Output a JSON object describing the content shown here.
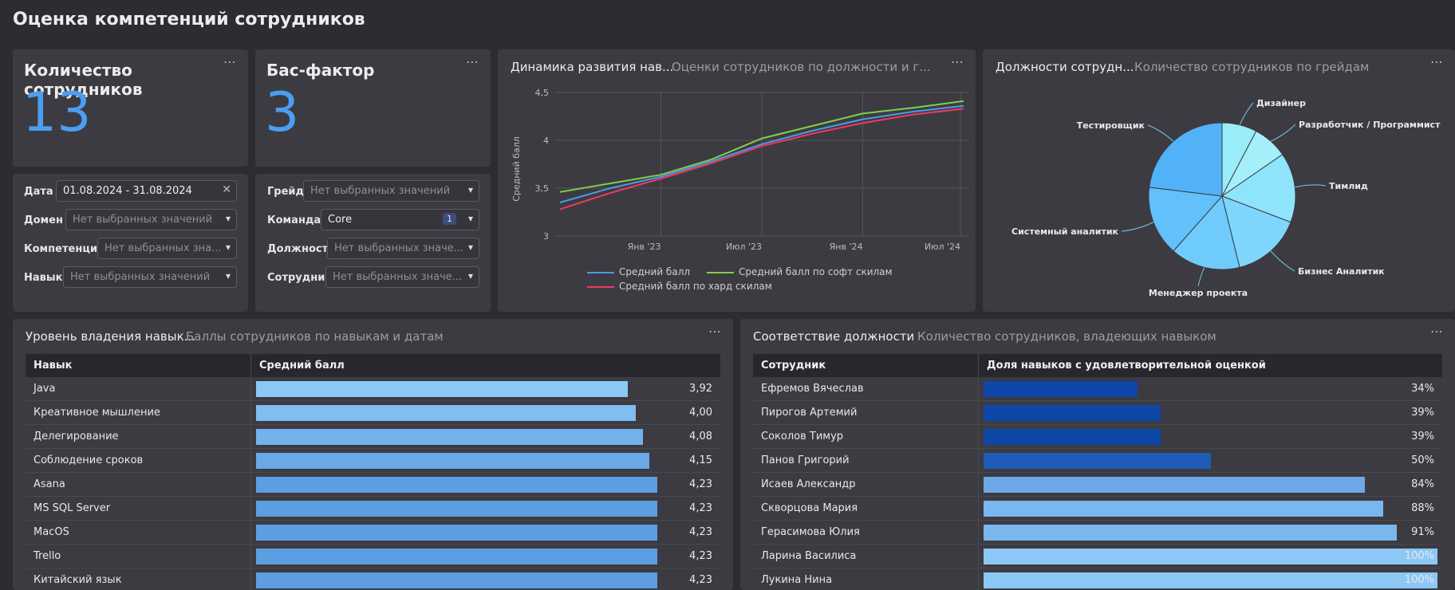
{
  "page": {
    "title": "Оценка компетенций сотрудников"
  },
  "menu_icon": "⋯",
  "kpi1": {
    "title": "Количество сотрудников",
    "value": "13"
  },
  "kpi2": {
    "title": "Бас-фактор",
    "value": "3"
  },
  "filters_left": {
    "date_label": "Дата",
    "date_value": "01.08.2024 - 31.08.2024",
    "domain_label": "Домен",
    "domain_placeholder": "Нет выбранных значений",
    "competence_label": "Компетенция",
    "competence_placeholder": "Нет выбранных зна...",
    "skill_label": "Навык",
    "skill_placeholder": "Нет выбранных значений"
  },
  "filters_right": {
    "grade_label": "Грейд",
    "grade_placeholder": "Нет выбранных значений",
    "team_label": "Команда*",
    "team_value": "Core",
    "team_count": "1",
    "position_label": "Должность",
    "position_placeholder": "Нет выбранных значе...",
    "employee_label": "Сотрудник",
    "employee_placeholder": "Нет выбранных значе..."
  },
  "line_card": {
    "tab1": "Динамика развития нав...",
    "tab2": "Оценки сотрудников по должности и г..."
  },
  "pie_card": {
    "tab1": "Должности сотрудн...",
    "tab2": "Количество сотрудников по грейдам"
  },
  "skills_card": {
    "tab1": "Уровень владения навык...",
    "tab2": "Баллы сотрудников по навыкам и датам",
    "col1": "Навык",
    "col2": "Средний балл",
    "rows": [
      {
        "name": "Java",
        "value": "3,92",
        "score": 3.92
      },
      {
        "name": "Креативное мышление",
        "value": "4,00",
        "score": 4.0
      },
      {
        "name": "Делегирование",
        "value": "4,08",
        "score": 4.08
      },
      {
        "name": "Соблюдение сроков",
        "value": "4,15",
        "score": 4.15
      },
      {
        "name": "Asana",
        "value": "4,23",
        "score": 4.23
      },
      {
        "name": "MS SQL Server",
        "value": "4,23",
        "score": 4.23
      },
      {
        "name": "MacOS",
        "value": "4,23",
        "score": 4.23
      },
      {
        "name": "Trello",
        "value": "4,23",
        "score": 4.23
      },
      {
        "name": "Китайский язык",
        "value": "4,23",
        "score": 4.23
      }
    ]
  },
  "match_card": {
    "tab1": "Соответствие должности",
    "tab2": "Количество сотрудников, владеющих навыком",
    "col1": "Сотрудник",
    "col2": "Доля навыков с удовлетворительной оценкой",
    "rows": [
      {
        "name": "Ефремов Вячеслав",
        "value": "34%",
        "pct": 34
      },
      {
        "name": "Пирогов Артемий",
        "value": "39%",
        "pct": 39
      },
      {
        "name": "Соколов Тимур",
        "value": "39%",
        "pct": 39
      },
      {
        "name": "Панов Григорий",
        "value": "50%",
        "pct": 50
      },
      {
        "name": "Исаев Александр",
        "value": "84%",
        "pct": 84
      },
      {
        "name": "Скворцова Мария",
        "value": "88%",
        "pct": 88
      },
      {
        "name": "Герасимова Юлия",
        "value": "91%",
        "pct": 91
      },
      {
        "name": "Ларина Василиса",
        "value": "100%",
        "pct": 100
      },
      {
        "name": "Лукина Нина",
        "value": "100%",
        "pct": 100
      }
    ]
  },
  "colors": {
    "accent": "#4b9ef0",
    "bar_light": "#8cc8f6",
    "bar_mid": "#5d9ee2",
    "dark_blue": "#0d47a1"
  },
  "chart_data": [
    {
      "type": "line",
      "ylabel": "Средний балл",
      "ylim": [
        3,
        4.5
      ],
      "x": [
        "2022-08",
        "2022-10",
        "2023-01",
        "2023-04",
        "2023-07",
        "2023-10",
        "2024-01",
        "2024-04",
        "2024-08"
      ],
      "x_ticks": [
        "Янв '23",
        "Июл '23",
        "Янв '24",
        "Июл '24"
      ],
      "y_ticks": [
        "3",
        "3,5",
        "4",
        "4,5"
      ],
      "legend_position": "bottom",
      "series": [
        {
          "name": "Средний балл",
          "color": "#4a9be6",
          "values": [
            3.35,
            3.5,
            3.62,
            3.78,
            3.96,
            4.1,
            4.22,
            4.3,
            4.36
          ]
        },
        {
          "name": "Средний балл по софт скилам",
          "color": "#7fd04b",
          "values": [
            3.46,
            3.55,
            3.64,
            3.8,
            4.02,
            4.15,
            4.28,
            4.34,
            4.41
          ]
        },
        {
          "name": "Средний балл по хард скилам",
          "color": "#ec3b5f",
          "values": [
            3.28,
            3.45,
            3.6,
            3.76,
            3.94,
            4.07,
            4.18,
            4.27,
            4.33
          ]
        }
      ]
    },
    {
      "type": "pie",
      "slices": [
        {
          "label": "Дизайнер",
          "value": 1,
          "color": "#99edf9"
        },
        {
          "label": "Разработчик / Программист",
          "value": 1,
          "color": "#a5effa"
        },
        {
          "label": "Тимлид",
          "value": 2,
          "color": "#8de4fb"
        },
        {
          "label": "Бизнес Аналитик",
          "value": 2,
          "color": "#7fd6fc"
        },
        {
          "label": "Менеджер проекта",
          "value": 2,
          "color": "#6fcbfb"
        },
        {
          "label": "Системный аналитик",
          "value": 2,
          "color": "#62c0fa"
        },
        {
          "label": "Тестировщик",
          "value": 3,
          "color": "#52b2f8"
        }
      ]
    }
  ]
}
